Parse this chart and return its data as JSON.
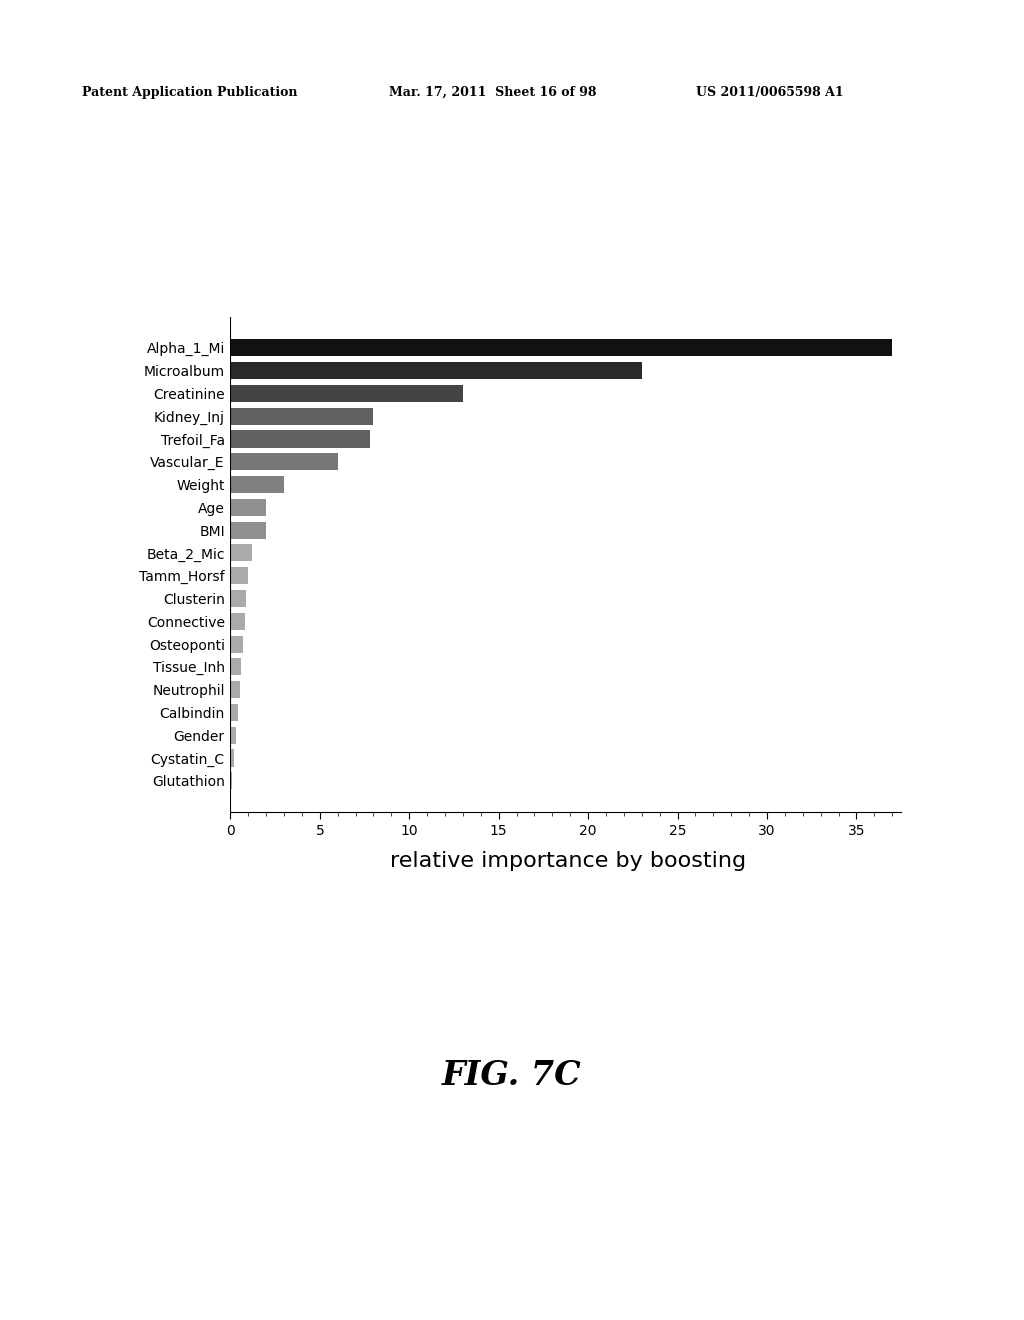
{
  "categories": [
    "Alpha_1_Mi",
    "Microalbum",
    "Creatinine",
    "Kidney_Inj",
    "Trefoil_Fa",
    "Vascular_E",
    "Weight",
    "Age",
    "BMI",
    "Beta_2_Mic",
    "Tamm_Horsf",
    "Clusterin",
    "Connective",
    "Osteoponti",
    "Tissue_Inh",
    "Neutrophil",
    "Calbindin",
    "Gender",
    "Cystatin_C",
    "Glutathion"
  ],
  "values": [
    37.0,
    23.0,
    13.0,
    8.0,
    7.8,
    6.0,
    3.0,
    2.0,
    2.0,
    1.2,
    1.0,
    0.9,
    0.8,
    0.7,
    0.6,
    0.55,
    0.4,
    0.3,
    0.2,
    0.1
  ],
  "bar_colors": [
    "#111111",
    "#2a2a2a",
    "#444444",
    "#606060",
    "#606060",
    "#787878",
    "#808080",
    "#909090",
    "#909090",
    "#aaaaaa",
    "#aaaaaa",
    "#aaaaaa",
    "#aaaaaa",
    "#aaaaaa",
    "#aaaaaa",
    "#aaaaaa",
    "#aaaaaa",
    "#aaaaaa",
    "#aaaaaa",
    "#aaaaaa"
  ],
  "xlabel": "relative importance by boosting",
  "xlim": [
    0,
    37.5
  ],
  "xticks": [
    0,
    5,
    10,
    15,
    20,
    25,
    30,
    35
  ],
  "background_color": "#ffffff",
  "header_left": "Patent Application Publication",
  "header_mid": "Mar. 17, 2011  Sheet 16 of 98",
  "header_right": "US 2011/0065598 A1",
  "figure_label": "FIG. 7C",
  "bar_height": 0.75,
  "xlabel_fontsize": 16,
  "tick_fontsize": 10,
  "ytick_fontsize": 10,
  "header_fontsize": 9,
  "figure_label_fontsize": 24
}
